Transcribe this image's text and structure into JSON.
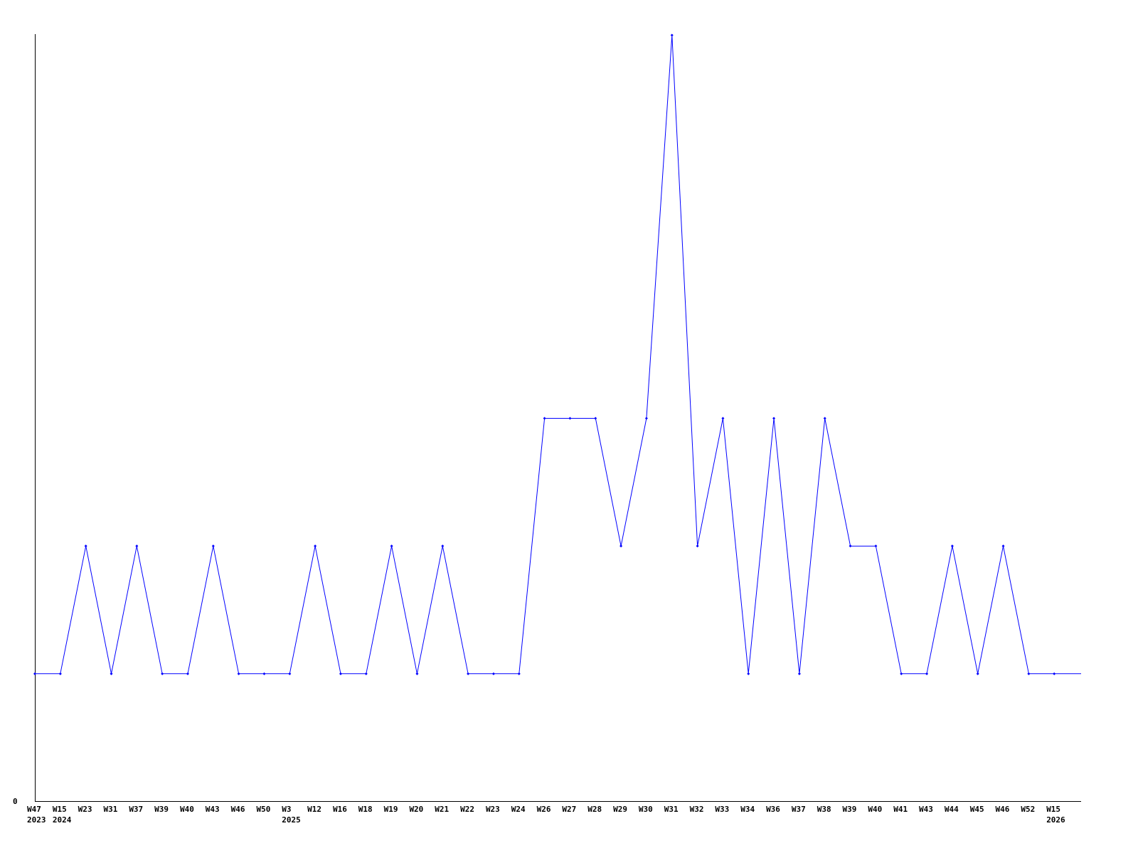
{
  "chart_data": {
    "type": "line",
    "title": "",
    "xlabel": "",
    "ylabel": "",
    "ylim": [
      0,
      6
    ],
    "y_tick_labels": [
      "0"
    ],
    "grid": false,
    "line_color": "#0000ff",
    "categories": [
      "W47",
      "W15",
      "W23",
      "W31",
      "W37",
      "W39",
      "W40",
      "W43",
      "W46",
      "W50",
      "W3",
      "W12",
      "W16",
      "W18",
      "W19",
      "W20",
      "W21",
      "W22",
      "W23",
      "W24",
      "W26",
      "W27",
      "W28",
      "W29",
      "W30",
      "W31",
      "W32",
      "W33",
      "W34",
      "W36",
      "W37",
      "W38",
      "W39",
      "W40",
      "W41",
      "W43",
      "W44",
      "W45",
      "W46",
      "W52",
      "W15"
    ],
    "year_labels": [
      {
        "index": 0,
        "label": "2023"
      },
      {
        "index": 1,
        "label": "2024"
      },
      {
        "index": 10,
        "label": "2025"
      },
      {
        "index": 40,
        "label": "2026"
      }
    ],
    "series": [
      {
        "values": [
          1,
          1,
          2,
          1,
          2,
          1,
          1,
          2,
          1,
          1,
          1,
          2,
          1,
          1,
          2,
          1,
          2,
          1,
          1,
          1,
          3,
          3,
          3,
          2,
          3,
          6,
          2,
          3,
          1,
          3,
          1,
          3,
          2,
          2,
          1,
          1,
          2,
          1,
          2,
          1,
          1
        ]
      }
    ]
  }
}
